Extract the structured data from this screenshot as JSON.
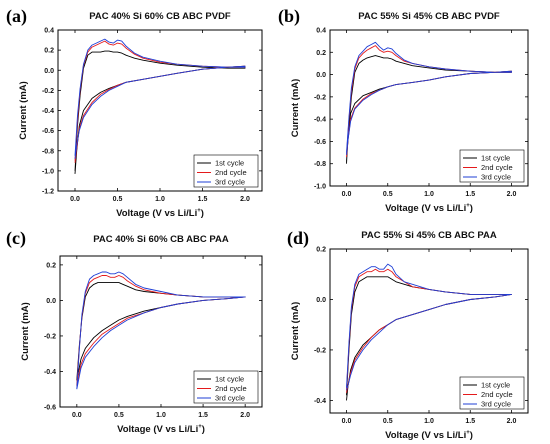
{
  "chart_data": [
    {
      "type": "line",
      "panel_label": "(a)",
      "title": "PAC 40% Si 60% CB ABC PVDF",
      "xlabel": "Voltage (V vs Li/Li",
      "xlabel_sup": "+",
      "xlabel_end": ")",
      "ylabel": "Current (mA)",
      "xlim": [
        -0.2,
        2.2
      ],
      "ylim": [
        -1.2,
        0.4
      ],
      "xticks": [
        "0.0",
        "0.5",
        "1.0",
        "1.5",
        "2.0"
      ],
      "yticks": [
        "-1.2",
        "-1.0",
        "-0.8",
        "-0.6",
        "-0.4",
        "-0.2",
        "0.0",
        "0.2",
        "0.4"
      ],
      "legend_position": "bottom-right",
      "series": [
        {
          "name": "1st cycle",
          "color": "#000000",
          "x": [
            0.0,
            0.03,
            0.06,
            0.1,
            0.15,
            0.2,
            0.25,
            0.3,
            0.35,
            0.4,
            0.45,
            0.5,
            0.55,
            0.6,
            0.7,
            0.8,
            1.0,
            1.2,
            1.5,
            1.8,
            2.0,
            2.0,
            1.8,
            1.5,
            1.2,
            1.0,
            0.8,
            0.6,
            0.5,
            0.4,
            0.3,
            0.2,
            0.1,
            0.05,
            0.02,
            0.0
          ],
          "y": [
            -1.0,
            -0.55,
            -0.25,
            0.02,
            0.15,
            0.18,
            0.18,
            0.18,
            0.19,
            0.19,
            0.18,
            0.18,
            0.17,
            0.15,
            0.12,
            0.1,
            0.07,
            0.05,
            0.03,
            0.02,
            0.02,
            0.04,
            0.03,
            0.01,
            -0.03,
            -0.06,
            -0.09,
            -0.12,
            -0.15,
            -0.18,
            -0.22,
            -0.28,
            -0.4,
            -0.55,
            -0.8,
            -1.03
          ]
        },
        {
          "name": "2nd cycle",
          "color": "#e41a1c",
          "x": [
            0.0,
            0.03,
            0.06,
            0.1,
            0.15,
            0.2,
            0.25,
            0.3,
            0.35,
            0.4,
            0.45,
            0.5,
            0.55,
            0.6,
            0.7,
            0.8,
            1.0,
            1.2,
            1.5,
            1.8,
            2.0,
            2.0,
            1.8,
            1.5,
            1.2,
            1.0,
            0.8,
            0.6,
            0.5,
            0.4,
            0.3,
            0.2,
            0.1,
            0.05,
            0.02,
            0.0
          ],
          "y": [
            -0.9,
            -0.5,
            -0.2,
            0.05,
            0.18,
            0.23,
            0.25,
            0.27,
            0.29,
            0.26,
            0.25,
            0.27,
            0.26,
            0.22,
            0.16,
            0.12,
            0.08,
            0.06,
            0.04,
            0.03,
            0.03,
            0.04,
            0.03,
            0.01,
            -0.03,
            -0.06,
            -0.09,
            -0.12,
            -0.15,
            -0.19,
            -0.24,
            -0.32,
            -0.45,
            -0.58,
            -0.78,
            -0.92
          ]
        },
        {
          "name": "3rd cycle",
          "color": "#1f3fd6",
          "x": [
            0.0,
            0.03,
            0.06,
            0.1,
            0.15,
            0.2,
            0.25,
            0.3,
            0.35,
            0.4,
            0.45,
            0.5,
            0.55,
            0.6,
            0.7,
            0.8,
            1.0,
            1.2,
            1.5,
            1.8,
            2.0,
            2.0,
            1.8,
            1.5,
            1.2,
            1.0,
            0.8,
            0.6,
            0.5,
            0.4,
            0.3,
            0.2,
            0.1,
            0.05,
            0.02,
            0.0
          ],
          "y": [
            -0.85,
            -0.45,
            -0.18,
            0.06,
            0.2,
            0.25,
            0.27,
            0.29,
            0.31,
            0.28,
            0.27,
            0.3,
            0.29,
            0.24,
            0.17,
            0.13,
            0.09,
            0.06,
            0.04,
            0.03,
            0.03,
            0.04,
            0.03,
            0.01,
            -0.03,
            -0.06,
            -0.09,
            -0.12,
            -0.16,
            -0.2,
            -0.26,
            -0.34,
            -0.47,
            -0.6,
            -0.75,
            -0.88
          ]
        }
      ]
    },
    {
      "type": "line",
      "panel_label": "(b)",
      "title": "PAC 55% Si 45% CB ABC PVDF",
      "xlabel": "Voltage (V vs Li/Li",
      "xlabel_sup": "+",
      "xlabel_end": ")",
      "ylabel": "Current (mA)",
      "xlim": [
        -0.2,
        2.2
      ],
      "ylim": [
        -1.0,
        0.4
      ],
      "xticks": [
        "0.0",
        "0.5",
        "1.0",
        "1.5",
        "2.0"
      ],
      "yticks": [
        "-1.0",
        "-0.8",
        "-0.6",
        "-0.4",
        "-0.2",
        "0.0",
        "0.2",
        "0.4"
      ],
      "legend_position": "bottom-right",
      "series": [
        {
          "name": "1st cycle",
          "color": "#000000",
          "x": [
            0.0,
            0.03,
            0.06,
            0.1,
            0.15,
            0.2,
            0.25,
            0.3,
            0.35,
            0.4,
            0.45,
            0.5,
            0.55,
            0.6,
            0.7,
            0.8,
            1.0,
            1.2,
            1.5,
            1.8,
            2.0,
            2.0,
            1.8,
            1.5,
            1.2,
            1.0,
            0.8,
            0.6,
            0.5,
            0.4,
            0.3,
            0.2,
            0.1,
            0.05,
            0.02,
            0.0
          ],
          "y": [
            -0.78,
            -0.45,
            -0.2,
            0.02,
            0.1,
            0.13,
            0.15,
            0.16,
            0.17,
            0.16,
            0.15,
            0.15,
            0.14,
            0.12,
            0.1,
            0.08,
            0.06,
            0.04,
            0.03,
            0.02,
            0.02,
            0.03,
            0.02,
            0.01,
            -0.02,
            -0.05,
            -0.07,
            -0.09,
            -0.11,
            -0.13,
            -0.16,
            -0.19,
            -0.26,
            -0.35,
            -0.55,
            -0.8
          ]
        },
        {
          "name": "2nd cycle",
          "color": "#e41a1c",
          "x": [
            0.0,
            0.03,
            0.06,
            0.1,
            0.15,
            0.2,
            0.25,
            0.3,
            0.35,
            0.4,
            0.45,
            0.5,
            0.55,
            0.6,
            0.7,
            0.8,
            1.0,
            1.2,
            1.5,
            1.8,
            2.0,
            2.0,
            1.8,
            1.5,
            1.2,
            1.0,
            0.8,
            0.6,
            0.5,
            0.4,
            0.3,
            0.2,
            0.1,
            0.05,
            0.02,
            0.0
          ],
          "y": [
            -0.72,
            -0.4,
            -0.15,
            0.05,
            0.15,
            0.19,
            0.22,
            0.24,
            0.26,
            0.22,
            0.2,
            0.21,
            0.2,
            0.17,
            0.12,
            0.1,
            0.07,
            0.05,
            0.03,
            0.02,
            0.02,
            0.03,
            0.02,
            0.01,
            -0.02,
            -0.05,
            -0.07,
            -0.09,
            -0.11,
            -0.14,
            -0.17,
            -0.22,
            -0.3,
            -0.4,
            -0.58,
            -0.74
          ]
        },
        {
          "name": "3rd cycle",
          "color": "#1f3fd6",
          "x": [
            0.0,
            0.03,
            0.06,
            0.1,
            0.15,
            0.2,
            0.25,
            0.3,
            0.35,
            0.4,
            0.45,
            0.5,
            0.55,
            0.6,
            0.7,
            0.8,
            1.0,
            1.2,
            1.5,
            1.8,
            2.0,
            2.0,
            1.8,
            1.5,
            1.2,
            1.0,
            0.8,
            0.6,
            0.5,
            0.4,
            0.3,
            0.2,
            0.1,
            0.05,
            0.02,
            0.0
          ],
          "y": [
            -0.7,
            -0.38,
            -0.12,
            0.07,
            0.17,
            0.21,
            0.25,
            0.27,
            0.29,
            0.25,
            0.22,
            0.24,
            0.23,
            0.19,
            0.13,
            0.1,
            0.07,
            0.05,
            0.03,
            0.02,
            0.02,
            0.03,
            0.02,
            0.01,
            -0.02,
            -0.05,
            -0.07,
            -0.09,
            -0.11,
            -0.14,
            -0.18,
            -0.23,
            -0.31,
            -0.42,
            -0.58,
            -0.72
          ]
        }
      ]
    },
    {
      "type": "line",
      "panel_label": "(c)",
      "title": "PAC 40% Si 60% CB ABC PAA",
      "xlabel": "Voltage (V vs Li/Li",
      "xlabel_sup": "+",
      "xlabel_end": ")",
      "ylabel": "Current (mA)",
      "xlim": [
        -0.2,
        2.2
      ],
      "ylim": [
        -0.6,
        0.25
      ],
      "xticks": [
        "0.0",
        "0.5",
        "1.0",
        "1.5",
        "2.0"
      ],
      "yticks": [
        "-0.6",
        "-0.4",
        "-0.2",
        "0.0",
        "0.2"
      ],
      "legend_position": "bottom-right",
      "series": [
        {
          "name": "1st cycle",
          "color": "#000000",
          "x": [
            0.0,
            0.03,
            0.06,
            0.1,
            0.15,
            0.2,
            0.25,
            0.3,
            0.35,
            0.4,
            0.45,
            0.5,
            0.55,
            0.6,
            0.7,
            0.8,
            1.0,
            1.2,
            1.5,
            1.8,
            2.0,
            2.0,
            1.8,
            1.5,
            1.2,
            1.0,
            0.8,
            0.6,
            0.5,
            0.4,
            0.3,
            0.2,
            0.1,
            0.05,
            0.02,
            0.0
          ],
          "y": [
            -0.45,
            -0.25,
            -0.1,
            0.02,
            0.07,
            0.09,
            0.1,
            0.1,
            0.1,
            0.1,
            0.1,
            0.1,
            0.09,
            0.08,
            0.06,
            0.05,
            0.04,
            0.03,
            0.02,
            0.02,
            0.02,
            0.02,
            0.01,
            0.0,
            -0.02,
            -0.04,
            -0.06,
            -0.09,
            -0.11,
            -0.14,
            -0.17,
            -0.21,
            -0.27,
            -0.33,
            -0.4,
            -0.45
          ]
        },
        {
          "name": "2nd cycle",
          "color": "#e41a1c",
          "x": [
            0.0,
            0.03,
            0.06,
            0.1,
            0.15,
            0.2,
            0.25,
            0.3,
            0.35,
            0.4,
            0.45,
            0.5,
            0.55,
            0.6,
            0.7,
            0.8,
            1.0,
            1.2,
            1.5,
            1.8,
            2.0,
            2.0,
            1.8,
            1.5,
            1.2,
            1.0,
            0.8,
            0.6,
            0.5,
            0.4,
            0.3,
            0.2,
            0.1,
            0.05,
            0.02,
            0.0
          ],
          "y": [
            -0.48,
            -0.26,
            -0.09,
            0.04,
            0.1,
            0.12,
            0.13,
            0.14,
            0.14,
            0.13,
            0.13,
            0.14,
            0.13,
            0.11,
            0.08,
            0.06,
            0.04,
            0.03,
            0.02,
            0.02,
            0.02,
            0.02,
            0.01,
            0.0,
            -0.02,
            -0.04,
            -0.07,
            -0.1,
            -0.13,
            -0.16,
            -0.19,
            -0.24,
            -0.3,
            -0.36,
            -0.43,
            -0.48
          ]
        },
        {
          "name": "3rd cycle",
          "color": "#1f3fd6",
          "x": [
            0.0,
            0.03,
            0.06,
            0.1,
            0.15,
            0.2,
            0.25,
            0.3,
            0.35,
            0.4,
            0.45,
            0.5,
            0.55,
            0.6,
            0.7,
            0.8,
            1.0,
            1.2,
            1.5,
            1.8,
            2.0,
            2.0,
            1.8,
            1.5,
            1.2,
            1.0,
            0.8,
            0.6,
            0.5,
            0.4,
            0.3,
            0.2,
            0.1,
            0.05,
            0.02,
            0.0
          ],
          "y": [
            -0.5,
            -0.27,
            -0.08,
            0.05,
            0.12,
            0.14,
            0.15,
            0.16,
            0.16,
            0.15,
            0.15,
            0.16,
            0.15,
            0.13,
            0.09,
            0.07,
            0.05,
            0.03,
            0.02,
            0.02,
            0.02,
            0.02,
            0.01,
            0.0,
            -0.02,
            -0.04,
            -0.07,
            -0.11,
            -0.14,
            -0.17,
            -0.21,
            -0.26,
            -0.32,
            -0.38,
            -0.45,
            -0.5
          ]
        }
      ]
    },
    {
      "type": "line",
      "panel_label": "(d)",
      "title": "PAC 55% Si 45% CB ABC PAA",
      "xlabel": "Voltage (V vs Li/Li",
      "xlabel_sup": "+",
      "xlabel_end": ")",
      "ylabel": "Current (mA)",
      "xlim": [
        -0.2,
        2.2
      ],
      "ylim": [
        -0.45,
        0.2
      ],
      "xticks": [
        "0.0",
        "0.5",
        "1.0",
        "1.5",
        "2.0"
      ],
      "yticks": [
        "-0.4",
        "-0.2",
        "0.0",
        "0.2"
      ],
      "legend_position": "bottom-right",
      "series": [
        {
          "name": "1st cycle",
          "color": "#000000",
          "x": [
            0.0,
            0.03,
            0.06,
            0.1,
            0.15,
            0.2,
            0.25,
            0.3,
            0.35,
            0.4,
            0.45,
            0.5,
            0.55,
            0.6,
            0.7,
            0.8,
            1.0,
            1.2,
            1.5,
            1.8,
            2.0,
            2.0,
            1.8,
            1.5,
            1.2,
            1.0,
            0.8,
            0.6,
            0.5,
            0.4,
            0.3,
            0.2,
            0.1,
            0.05,
            0.02,
            0.0
          ],
          "y": [
            -0.38,
            -0.2,
            -0.06,
            0.03,
            0.07,
            0.08,
            0.09,
            0.09,
            0.09,
            0.09,
            0.09,
            0.09,
            0.08,
            0.07,
            0.06,
            0.05,
            0.04,
            0.03,
            0.02,
            0.02,
            0.02,
            0.02,
            0.01,
            0.0,
            -0.02,
            -0.04,
            -0.06,
            -0.08,
            -0.1,
            -0.12,
            -0.15,
            -0.18,
            -0.23,
            -0.28,
            -0.34,
            -0.4
          ]
        },
        {
          "name": "2nd cycle",
          "color": "#e41a1c",
          "x": [
            0.0,
            0.03,
            0.06,
            0.1,
            0.15,
            0.2,
            0.25,
            0.3,
            0.35,
            0.4,
            0.45,
            0.5,
            0.55,
            0.6,
            0.7,
            0.8,
            1.0,
            1.2,
            1.5,
            1.8,
            2.0,
            2.0,
            1.8,
            1.5,
            1.2,
            1.0,
            0.8,
            0.6,
            0.5,
            0.4,
            0.3,
            0.2,
            0.1,
            0.05,
            0.02,
            0.0
          ],
          "y": [
            -0.36,
            -0.18,
            -0.04,
            0.05,
            0.09,
            0.1,
            0.11,
            0.11,
            0.12,
            0.11,
            0.11,
            0.12,
            0.11,
            0.09,
            0.07,
            0.05,
            0.04,
            0.03,
            0.02,
            0.02,
            0.02,
            0.02,
            0.01,
            0.0,
            -0.02,
            -0.04,
            -0.06,
            -0.08,
            -0.1,
            -0.12,
            -0.15,
            -0.19,
            -0.24,
            -0.29,
            -0.34,
            -0.37
          ]
        },
        {
          "name": "3rd cycle",
          "color": "#1f3fd6",
          "x": [
            0.0,
            0.03,
            0.06,
            0.1,
            0.15,
            0.2,
            0.25,
            0.3,
            0.35,
            0.4,
            0.45,
            0.5,
            0.55,
            0.6,
            0.7,
            0.8,
            1.0,
            1.2,
            1.5,
            1.8,
            2.0,
            2.0,
            1.8,
            1.5,
            1.2,
            1.0,
            0.8,
            0.6,
            0.5,
            0.4,
            0.3,
            0.2,
            0.1,
            0.05,
            0.02,
            0.0
          ],
          "y": [
            -0.35,
            -0.17,
            -0.03,
            0.06,
            0.1,
            0.11,
            0.12,
            0.13,
            0.13,
            0.12,
            0.12,
            0.14,
            0.13,
            0.1,
            0.07,
            0.06,
            0.04,
            0.03,
            0.02,
            0.02,
            0.02,
            0.02,
            0.01,
            0.0,
            -0.02,
            -0.04,
            -0.06,
            -0.08,
            -0.1,
            -0.13,
            -0.16,
            -0.2,
            -0.25,
            -0.3,
            -0.34,
            -0.36
          ]
        }
      ]
    }
  ]
}
